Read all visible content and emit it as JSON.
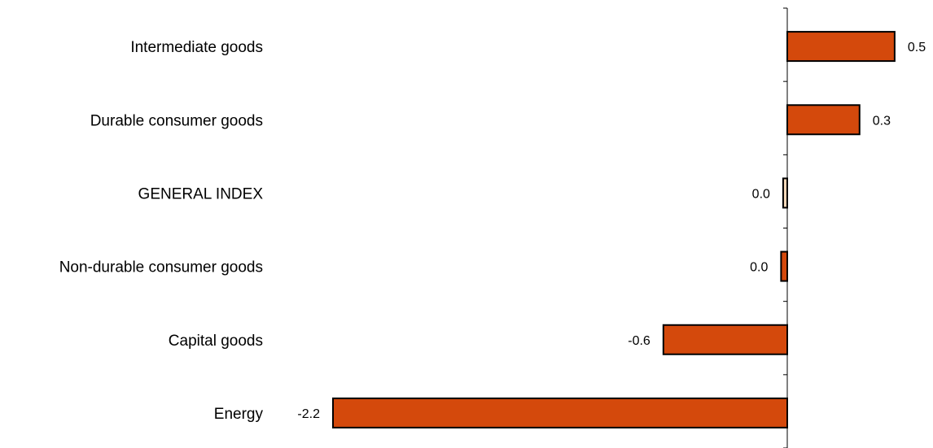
{
  "chart_data": {
    "type": "bar",
    "orientation": "horizontal",
    "categories": [
      "Intermediate goods",
      "Durable consumer goods",
      "GENERAL INDEX",
      "Non-durable consumer goods",
      "Capital goods",
      "Energy"
    ],
    "values": [
      0.52,
      0.35,
      -0.02,
      -0.03,
      -0.6,
      -2.2
    ],
    "data_labels": [
      "0.5",
      "0.3",
      "0.0",
      "0.0",
      "-0.6",
      "-2.2"
    ],
    "highlight_category": "GENERAL INDEX",
    "xlim": [
      -2.2,
      0.52
    ],
    "grid": false,
    "title": "",
    "xlabel": "",
    "ylabel": ""
  },
  "colors": {
    "bar_fill": "#d4490c",
    "highlight_fill": "#f6d7b8",
    "bar_stroke": "#000000",
    "axis": "#000000"
  }
}
